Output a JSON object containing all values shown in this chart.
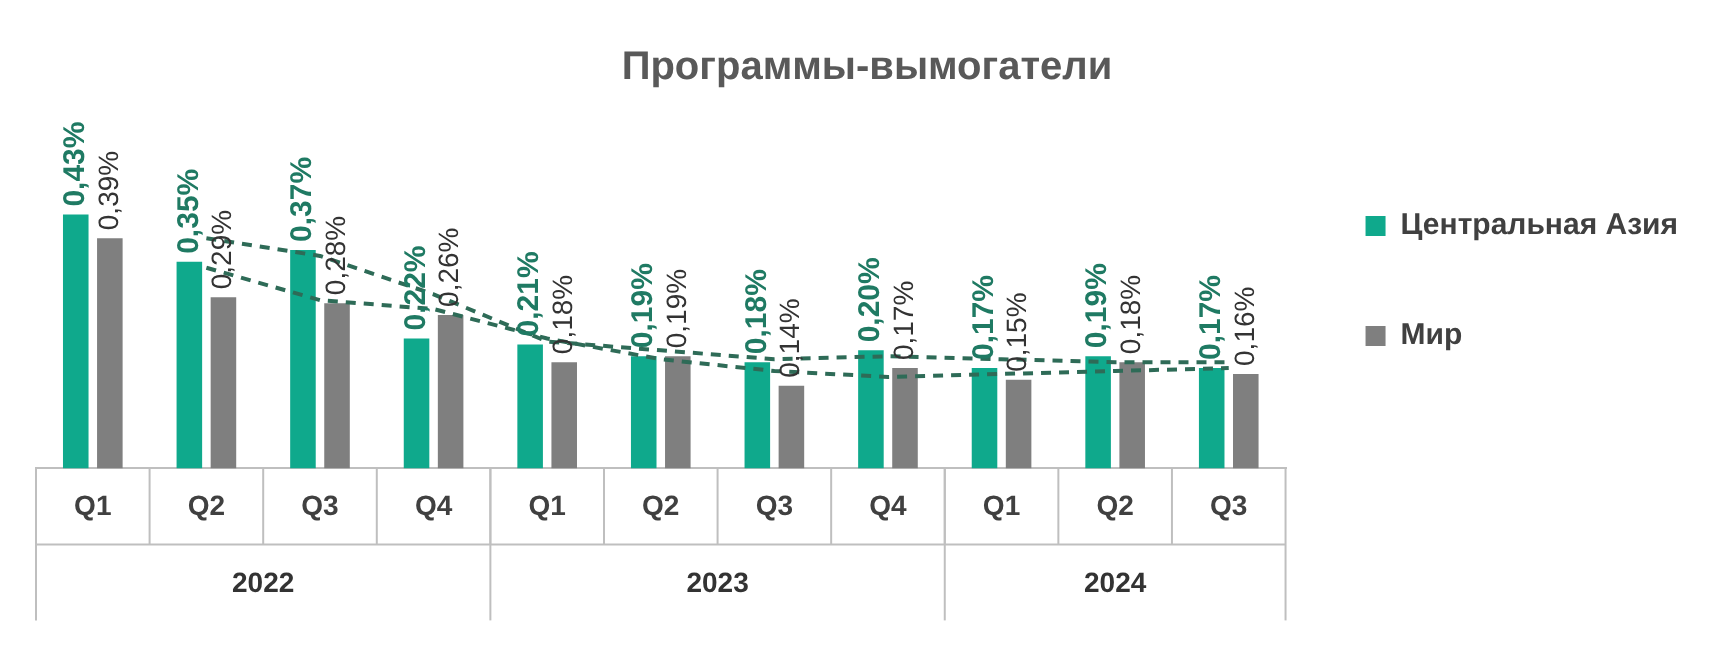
{
  "chart_data": {
    "type": "bar",
    "title": "Программы-вымогатели",
    "categories": [
      "Q1",
      "Q2",
      "Q3",
      "Q4",
      "Q1",
      "Q2",
      "Q3",
      "Q4",
      "Q1",
      "Q2",
      "Q3"
    ],
    "annotations": [
      "2022",
      "2023",
      "2024"
    ],
    "series": [
      {
        "name": "Центральная Азия",
        "color": "#0fa98c",
        "values": [
          0.43,
          0.35,
          0.37,
          0.22,
          0.21,
          0.19,
          0.18,
          0.2,
          0.17,
          0.19,
          0.17
        ],
        "value_labels": [
          "0,43%",
          "0,35%",
          "0,37%",
          "0,22%",
          "0,21%",
          "0,19%",
          "0,18%",
          "0,20%",
          "0,17%",
          "0,19%",
          "0,17%"
        ]
      },
      {
        "name": "Мир",
        "color": "#7f7f7f",
        "values": [
          0.39,
          0.29,
          0.28,
          0.26,
          0.18,
          0.19,
          0.14,
          0.17,
          0.15,
          0.18,
          0.16
        ],
        "value_labels": [
          "0,39%",
          "0,29%",
          "0,28%",
          "0,26%",
          "0,18%",
          "0,19%",
          "0,14%",
          "0,17%",
          "0,15%",
          "0,18%",
          "0,16%"
        ]
      },
      {
        "type": "line",
        "color": "#2e6b57",
        "line_style": "dashed",
        "values": [
          null,
          0.39,
          0.36,
          0.295,
          0.215,
          0.2,
          0.185,
          0.19,
          0.185,
          0.18,
          0.18
        ]
      },
      {
        "type": "line",
        "color": "#2e6b57",
        "line_style": "dashed",
        "values": [
          null,
          0.34,
          0.285,
          0.27,
          0.22,
          0.185,
          0.165,
          0.155,
          0.16,
          0.165,
          0.17
        ]
      }
    ],
    "legend": "right",
    "grid": false
  }
}
